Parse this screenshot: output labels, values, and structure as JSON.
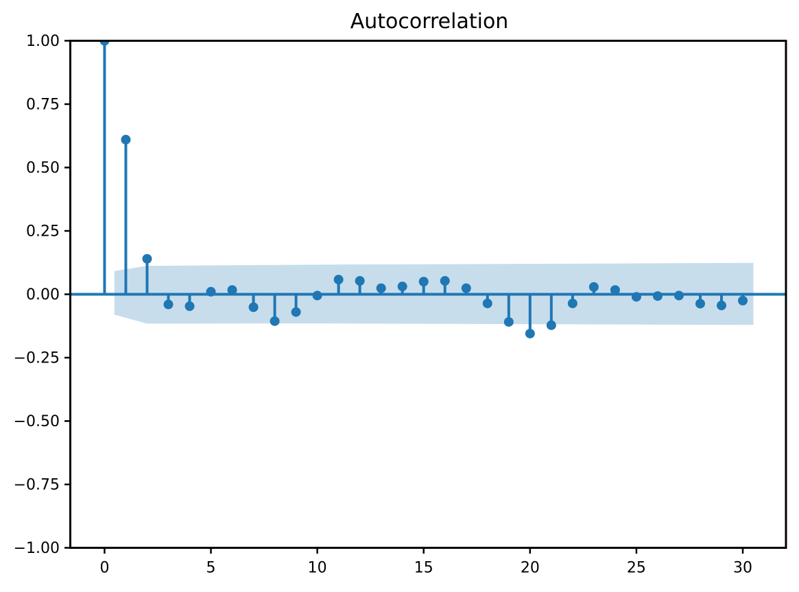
{
  "figure": {
    "background": "#ffffff"
  },
  "chart_data": {
    "type": "stem",
    "title": "Autocorrelation",
    "xlabel": "",
    "ylabel": "",
    "grid": false,
    "legend": false,
    "x": [
      0,
      1,
      2,
      3,
      4,
      5,
      6,
      7,
      8,
      9,
      10,
      11,
      12,
      13,
      14,
      15,
      16,
      17,
      18,
      19,
      20,
      21,
      22,
      23,
      24,
      25,
      26,
      27,
      28,
      29,
      30
    ],
    "values": [
      1.0,
      0.61,
      0.14,
      -0.04,
      -0.047,
      0.01,
      0.017,
      -0.051,
      -0.106,
      -0.07,
      -0.005,
      0.058,
      0.053,
      0.024,
      0.031,
      0.05,
      0.053,
      0.024,
      -0.036,
      -0.109,
      -0.155,
      -0.122,
      -0.036,
      0.029,
      0.017,
      -0.01,
      -0.007,
      -0.005,
      -0.037,
      -0.044,
      -0.025
    ],
    "xlim": [
      -1.61,
      32.03
    ],
    "ylim": [
      -1.0,
      1.0
    ],
    "xticks": {
      "values": [
        0,
        5,
        10,
        15,
        20,
        25,
        30
      ],
      "labels": [
        "0",
        "5",
        "10",
        "15",
        "20",
        "25",
        "30"
      ]
    },
    "yticks": {
      "values": [
        1.0,
        0.75,
        0.5,
        0.25,
        0.0,
        -0.25,
        -0.5,
        -0.75,
        -1.0
      ],
      "labels": [
        "1.00",
        "0.75",
        "0.50",
        "0.25",
        "0.00",
        "−0.25",
        "−0.50",
        "−0.75",
        "−1.00"
      ]
    },
    "confidence_band": {
      "x": [
        0.46,
        2.0,
        10.0,
        20.0,
        30.5
      ],
      "upper": [
        0.092,
        0.112,
        0.117,
        0.12,
        0.124
      ],
      "lower": [
        -0.08,
        -0.116,
        -0.115,
        -0.118,
        -0.121
      ]
    },
    "colors": {
      "series": "#1f77b4",
      "band": "#1f77b4",
      "band_opacity": 0.25,
      "axis": "#000000",
      "text": "#000000"
    }
  }
}
